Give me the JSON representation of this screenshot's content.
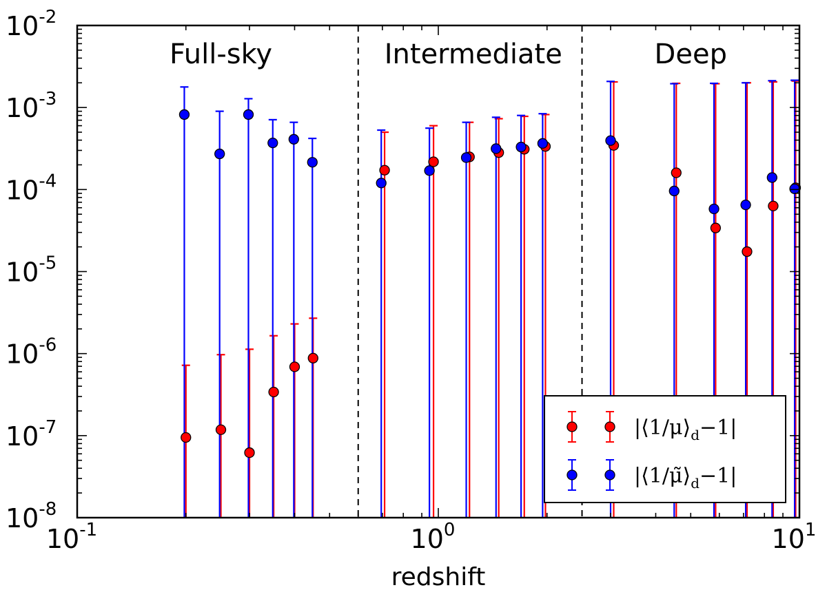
{
  "chart_data": {
    "type": "scatter",
    "xscale": "log",
    "yscale": "log",
    "xlim": [
      0.1,
      10
    ],
    "ylim": [
      1e-08,
      0.01
    ],
    "xlabel": "redshift",
    "ylabel": "",
    "x_tick_labels": [
      {
        "value": 0.1,
        "base": "10",
        "exp": "-1"
      },
      {
        "value": 1,
        "base": "10",
        "exp": "0"
      },
      {
        "value": 10,
        "base": "10",
        "exp": "1"
      }
    ],
    "y_tick_labels": [
      {
        "value": 0.01,
        "base": "10",
        "exp": "-2"
      },
      {
        "value": 0.001,
        "base": "10",
        "exp": "-3"
      },
      {
        "value": 0.0001,
        "base": "10",
        "exp": "-4"
      },
      {
        "value": 1e-05,
        "base": "10",
        "exp": "-5"
      },
      {
        "value": 1e-06,
        "base": "10",
        "exp": "-6"
      },
      {
        "value": 1e-07,
        "base": "10",
        "exp": "-7"
      },
      {
        "value": 1e-08,
        "base": "10",
        "exp": "-8"
      }
    ],
    "region_dividers": [
      0.6,
      2.5
    ],
    "regions": [
      {
        "label": "Full-sky",
        "x_center": 0.25
      },
      {
        "label": "Intermediate",
        "x_center": 1.25
      },
      {
        "label": "Deep",
        "x_center": 5.0
      }
    ],
    "grid": false,
    "legend": {
      "placement": "bottom-right"
    },
    "series": [
      {
        "name": "|⟨1/μ⟩d−1|",
        "legend_text": {
          "main": "|⟨1/μ⟩",
          "sub": "d",
          "tail": "−1|"
        },
        "color": "#ff0000",
        "points": [
          {
            "x": 0.2,
            "y": 9.5e-08,
            "err_upper": 7.2e-07
          },
          {
            "x": 0.25,
            "y": 1.18e-07,
            "err_upper": 9.7e-07
          },
          {
            "x": 0.3,
            "y": 6.2e-08,
            "err_upper": 1.13e-06
          },
          {
            "x": 0.35,
            "y": 3.4e-07,
            "err_upper": 1.65e-06
          },
          {
            "x": 0.4,
            "y": 6.9e-07,
            "err_upper": 2.3e-06
          },
          {
            "x": 0.45,
            "y": 8.8e-07,
            "err_upper": 2.7e-06
          },
          {
            "x": 0.71,
            "y": 0.000172,
            "err_upper": 0.0005
          },
          {
            "x": 0.97,
            "y": 0.000218,
            "err_upper": 0.0006
          },
          {
            "x": 1.22,
            "y": 0.00025,
            "err_upper": 0.00066
          },
          {
            "x": 1.47,
            "y": 0.000282,
            "err_upper": 0.00073
          },
          {
            "x": 1.73,
            "y": 0.00031,
            "err_upper": 0.00078
          },
          {
            "x": 1.98,
            "y": 0.000335,
            "err_upper": 0.00082
          },
          {
            "x": 3.06,
            "y": 0.000345,
            "err_upper": 0.00205
          },
          {
            "x": 4.56,
            "y": 0.00016,
            "err_upper": 0.00197
          },
          {
            "x": 5.86,
            "y": 3.4e-05,
            "err_upper": 0.00195
          },
          {
            "x": 7.16,
            "y": 1.75e-05,
            "err_upper": 0.002
          },
          {
            "x": 8.46,
            "y": 6.3e-05,
            "err_upper": 0.00205
          },
          {
            "x": 9.76,
            "y": 0.000105,
            "err_upper": 0.0021
          }
        ]
      },
      {
        "name": "|⟨1/μ̃⟩d−1|",
        "legend_text": {
          "main": "|⟨1/μ̃⟩",
          "sub": "d",
          "tail": "−1|"
        },
        "color": "#0000ff",
        "points": [
          {
            "x": 0.198,
            "y": 0.00082,
            "err_upper": 0.00178
          },
          {
            "x": 0.248,
            "y": 0.000272,
            "err_upper": 0.0009
          },
          {
            "x": 0.298,
            "y": 0.00082,
            "err_upper": 0.00128
          },
          {
            "x": 0.348,
            "y": 0.00037,
            "err_upper": 0.00071
          },
          {
            "x": 0.398,
            "y": 0.00041,
            "err_upper": 0.00066
          },
          {
            "x": 0.448,
            "y": 0.000215,
            "err_upper": 0.00042
          },
          {
            "x": 0.695,
            "y": 0.00012,
            "err_upper": 0.00053
          },
          {
            "x": 0.945,
            "y": 0.00017,
            "err_upper": 0.00056
          },
          {
            "x": 1.195,
            "y": 0.000245,
            "err_upper": 0.00066
          },
          {
            "x": 1.445,
            "y": 0.000315,
            "err_upper": 0.00076
          },
          {
            "x": 1.695,
            "y": 0.00033,
            "err_upper": 0.0008
          },
          {
            "x": 1.945,
            "y": 0.000365,
            "err_upper": 0.00084
          },
          {
            "x": 3.0,
            "y": 0.000395,
            "err_upper": 0.00208
          },
          {
            "x": 4.5,
            "y": 9.6e-05,
            "err_upper": 0.00195
          },
          {
            "x": 5.8,
            "y": 5.8e-05,
            "err_upper": 0.00197
          },
          {
            "x": 7.1,
            "y": 6.5e-05,
            "err_upper": 0.002
          },
          {
            "x": 8.4,
            "y": 0.00014,
            "err_upper": 0.00212
          },
          {
            "x": 9.7,
            "y": 0.000102,
            "err_upper": 0.00215
          }
        ]
      }
    ]
  }
}
